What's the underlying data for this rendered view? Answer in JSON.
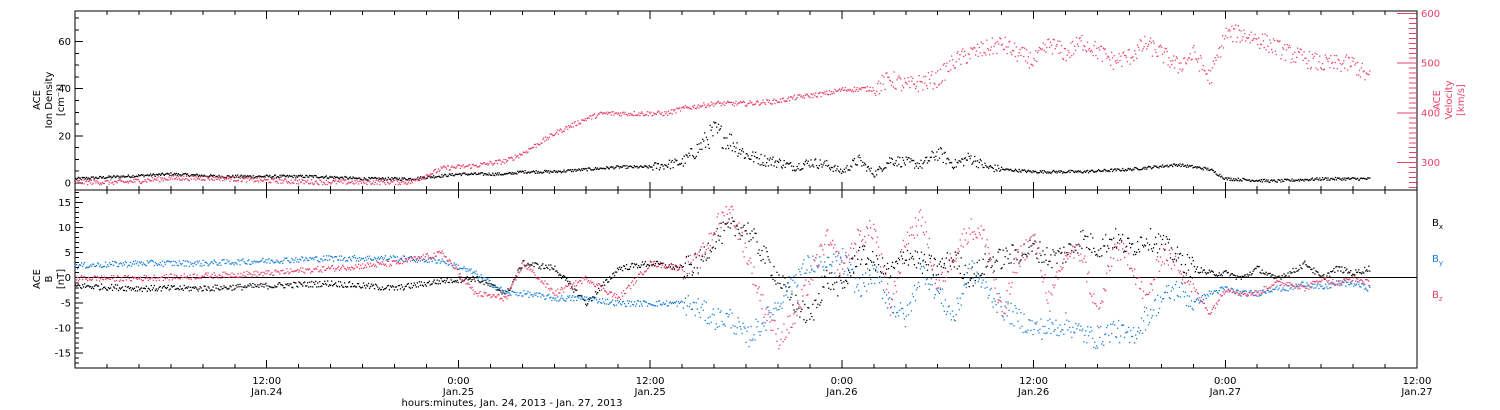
{
  "colors": {
    "black": "#000000",
    "pink": "#e8416a",
    "blue": "#1a7fd8"
  },
  "time_axis": {
    "xlabel": "hours:minutes, Jan. 24, 2013 - Jan. 27, 2013",
    "start_hour": 0,
    "end_hour": 84,
    "major_ticks": [
      {
        "hour": 12,
        "time": "12:00",
        "date": "Jan.24"
      },
      {
        "hour": 24,
        "time": "0:00",
        "date": "Jan.25"
      },
      {
        "hour": 36,
        "time": "12:00",
        "date": "Jan.25"
      },
      {
        "hour": 48,
        "time": "0:00",
        "date": "Jan.26"
      },
      {
        "hour": 60,
        "time": "12:00",
        "date": "Jan.26"
      },
      {
        "hour": 72,
        "time": "0:00",
        "date": "Jan.27"
      },
      {
        "hour": 84,
        "time": "12:00",
        "date": "Jan.27"
      }
    ]
  },
  "chart_data": [
    {
      "type": "scatter",
      "panel": "top",
      "ylabel": [
        "ACE",
        "Ion Density",
        "[cm⁻³]"
      ],
      "ylim": [
        -3,
        73
      ],
      "yticks": [
        0,
        20,
        40,
        60
      ],
      "y2label": [
        "ACE",
        "Velocity",
        "[km/s]"
      ],
      "y2lim": [
        245,
        605
      ],
      "y2ticks": [
        300,
        400,
        500,
        600
      ],
      "series": [
        {
          "name": "Ion Density",
          "color": "#000000",
          "axis": "left",
          "x": [
            0,
            3,
            6,
            9,
            12,
            15,
            18,
            21,
            24,
            27,
            28,
            30,
            32,
            34,
            36,
            38,
            39,
            40,
            41,
            42,
            43,
            44,
            45,
            46,
            47,
            48,
            49,
            50,
            51,
            52,
            53,
            54,
            55,
            56,
            57,
            58,
            60,
            63,
            66,
            69,
            71,
            72,
            75,
            78,
            80,
            81
          ],
          "y": [
            2,
            3,
            4,
            3,
            3,
            3,
            2,
            2,
            4,
            4,
            5,
            5,
            6,
            7,
            7,
            9,
            15,
            22,
            18,
            12,
            10,
            9,
            7,
            9,
            8,
            5,
            10,
            4,
            10,
            9,
            8,
            13,
            8,
            11,
            7,
            6,
            5,
            5,
            6,
            8,
            6,
            2,
            1,
            2,
            2,
            2
          ]
        },
        {
          "name": "Velocity",
          "color": "#e8416a",
          "axis": "right",
          "x": [
            0,
            3,
            6,
            9,
            12,
            15,
            18,
            21,
            23,
            25,
            27,
            28,
            30,
            32,
            33,
            35,
            37,
            38,
            40,
            42,
            44,
            45,
            47,
            48,
            50,
            51,
            52,
            54,
            55,
            56,
            57,
            58,
            59,
            60,
            61,
            62,
            63,
            64,
            65,
            66,
            67,
            68,
            69,
            70,
            71,
            72,
            73,
            74,
            76,
            78,
            80,
            81
          ],
          "y": [
            262,
            262,
            270,
            270,
            265,
            262,
            262,
            262,
            290,
            295,
            305,
            320,
            360,
            390,
            400,
            400,
            400,
            410,
            420,
            420,
            425,
            432,
            440,
            448,
            450,
            470,
            455,
            470,
            505,
            520,
            530,
            540,
            520,
            505,
            540,
            520,
            545,
            525,
            505,
            515,
            540,
            520,
            495,
            520,
            470,
            560,
            560,
            550,
            520,
            500,
            500,
            470
          ]
        }
      ]
    },
    {
      "type": "scatter",
      "panel": "bottom",
      "ylabel": [
        "ACE",
        "B",
        "[nT]"
      ],
      "ylim": [
        -18,
        17.5
      ],
      "yticks": [
        -15,
        -10,
        -5,
        0,
        5,
        10,
        15
      ],
      "zero_line": true,
      "series": [
        {
          "name": "Bx",
          "color": "#000000",
          "x": [
            0,
            4,
            8,
            12,
            16,
            20,
            23,
            25,
            27,
            28,
            30,
            32,
            34,
            36,
            38,
            39,
            40,
            41,
            42,
            43,
            44,
            45,
            46,
            47,
            48,
            49,
            50,
            51,
            52,
            53,
            54,
            55,
            56,
            57,
            58,
            59,
            60,
            61,
            62,
            63,
            64,
            65,
            66,
            67,
            68,
            69,
            70,
            71,
            72,
            73,
            74,
            75,
            76,
            77,
            78,
            79,
            80,
            81
          ],
          "y": [
            -1.5,
            -2,
            -2,
            -1.5,
            -1,
            -2,
            -0.5,
            0,
            -3,
            3,
            2,
            -5,
            2,
            3,
            2,
            3,
            8,
            10,
            10,
            5,
            0,
            -5,
            -8,
            0,
            -2,
            5,
            3,
            1,
            5,
            3,
            2,
            4,
            0,
            3,
            4,
            5,
            6,
            4,
            5,
            8,
            6,
            8,
            6,
            8,
            7,
            4,
            2,
            1,
            1,
            0,
            2,
            0,
            1,
            3,
            0,
            2,
            1,
            2
          ]
        },
        {
          "name": "By",
          "color": "#1a7fd8",
          "x": [
            0,
            4,
            8,
            12,
            16,
            20,
            23,
            25,
            27,
            28,
            30,
            32,
            34,
            36,
            38,
            39,
            40,
            41,
            42,
            43,
            44,
            45,
            46,
            47,
            48,
            49,
            50,
            51,
            52,
            53,
            54,
            55,
            56,
            57,
            58,
            59,
            60,
            61,
            62,
            63,
            64,
            65,
            66,
            67,
            68,
            69,
            70,
            71,
            72,
            73,
            74,
            75,
            76,
            77,
            78,
            79,
            80,
            81
          ],
          "y": [
            2.5,
            3,
            3,
            3.5,
            4,
            4,
            3.5,
            1,
            -3,
            -3,
            -4,
            -4,
            -5,
            -5,
            -5,
            -6,
            -8,
            -8,
            -12,
            -9,
            -5,
            0,
            3,
            2,
            4,
            -2,
            1,
            -5,
            -8,
            2,
            -3,
            -8,
            2,
            -2,
            -6,
            -8,
            -10,
            -10,
            -9,
            -11,
            -12,
            -10,
            -12,
            -8,
            -4,
            -2,
            -5,
            -3,
            -2,
            -3,
            -3,
            -2,
            -2,
            -1,
            -2,
            -1,
            -1,
            -2
          ]
        },
        {
          "name": "Bz",
          "color": "#e8416a",
          "x": [
            0,
            4,
            8,
            12,
            16,
            20,
            23,
            25,
            27,
            28,
            30,
            32,
            34,
            36,
            38,
            39,
            40,
            41,
            42,
            43,
            44,
            45,
            46,
            47,
            48,
            49,
            50,
            51,
            52,
            53,
            54,
            55,
            56,
            57,
            58,
            59,
            60,
            61,
            62,
            63,
            64,
            65,
            66,
            67,
            68,
            69,
            70,
            71,
            72,
            73,
            74,
            75,
            76,
            77,
            78,
            79,
            80,
            81
          ],
          "y": [
            0,
            0,
            0.5,
            1,
            2,
            3,
            5,
            -3,
            -4,
            3,
            -3,
            0,
            -4,
            3,
            2,
            3,
            10,
            14,
            5,
            -5,
            -12,
            -8,
            0,
            8,
            2,
            8,
            10,
            -6,
            8,
            12,
            -2,
            5,
            10,
            8,
            -8,
            4,
            8,
            -5,
            5,
            5,
            -8,
            6,
            4,
            -5,
            5,
            3,
            -2,
            -7,
            -2,
            -3,
            -3,
            -1,
            -1,
            -2,
            0,
            -1,
            0,
            -1
          ]
        }
      ],
      "legend": [
        {
          "main": "B",
          "sub": "x",
          "color": "#000000"
        },
        {
          "main": "B",
          "sub": "y",
          "color": "#1a7fd8"
        },
        {
          "main": "B",
          "sub": "z",
          "color": "#e8416a"
        }
      ]
    }
  ]
}
